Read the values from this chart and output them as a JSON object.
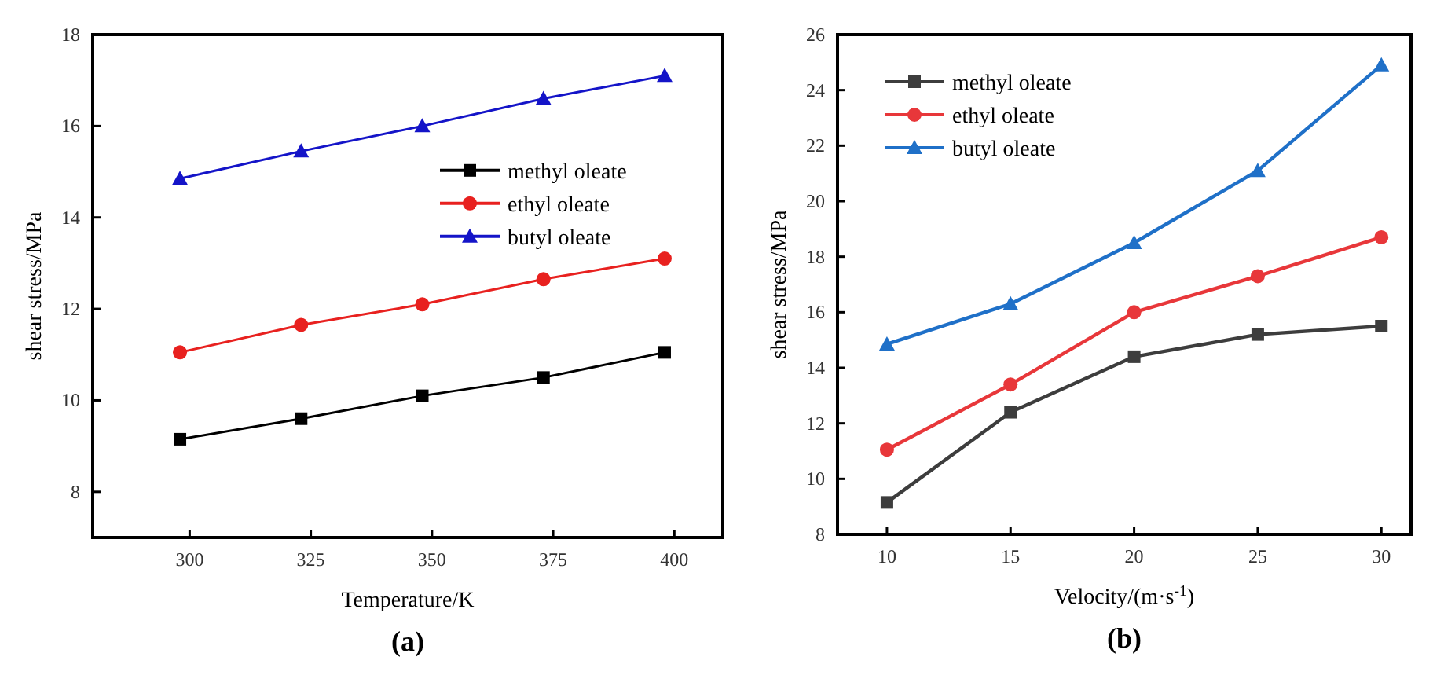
{
  "chart_data": [
    {
      "type": "line",
      "xlabel": "Temperature/K",
      "ylabel": "shear stress/MPa",
      "annotations": [
        "(a)"
      ],
      "x": [
        298,
        323,
        348,
        373,
        398
      ],
      "xlim": [
        280,
        410
      ],
      "xticks": [
        300,
        325,
        350,
        375,
        400
      ],
      "ylim": [
        7,
        18
      ],
      "yticks": [
        8,
        10,
        12,
        14,
        16,
        18
      ],
      "legend": "right",
      "grid": false,
      "series": [
        {
          "name": "methyl oleate",
          "color": "#000000",
          "marker": "square",
          "values": [
            9.15,
            9.6,
            10.1,
            10.5,
            11.05
          ]
        },
        {
          "name": "ethyl oleate",
          "color": "#e8211f",
          "marker": "circle",
          "values": [
            11.05,
            11.65,
            12.1,
            12.65,
            13.1
          ]
        },
        {
          "name": "butyl oleate",
          "color": "#1414c8",
          "marker": "triangle",
          "values": [
            14.85,
            15.45,
            16.0,
            16.6,
            17.1
          ]
        }
      ]
    },
    {
      "type": "line",
      "xlabel": "Velocity/(m·s$^{-1}$)",
      "ylabel": "shear stress/MPa",
      "annotations": [
        "(b)"
      ],
      "x": [
        10,
        15,
        20,
        25,
        30
      ],
      "xlim": [
        8,
        31.2
      ],
      "xticks": [
        10,
        15,
        20,
        25,
        30
      ],
      "ylim": [
        8,
        26
      ],
      "yticks": [
        8,
        10,
        12,
        14,
        16,
        18,
        20,
        22,
        24,
        26
      ],
      "legend": "top left",
      "grid": false,
      "series": [
        {
          "name": "methyl oleate",
          "color": "#3d3d3d",
          "marker": "square",
          "values": [
            9.15,
            12.4,
            14.4,
            15.2,
            15.5
          ]
        },
        {
          "name": "ethyl oleate",
          "color": "#e8373a",
          "marker": "circle",
          "values": [
            11.05,
            13.4,
            16.0,
            17.3,
            18.7
          ]
        },
        {
          "name": "butyl oleate",
          "color": "#1f70c8",
          "marker": "triangle",
          "values": [
            14.85,
            16.3,
            18.5,
            21.1,
            24.9
          ]
        }
      ]
    }
  ]
}
